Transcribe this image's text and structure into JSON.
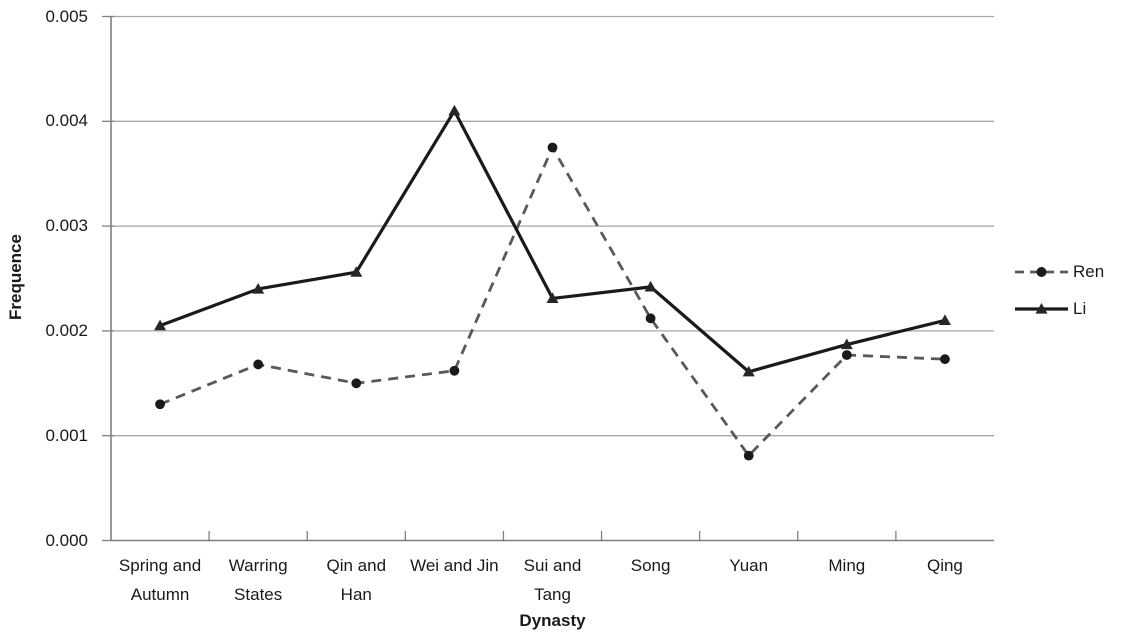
{
  "chart_data": {
    "type": "line",
    "title": "",
    "xlabel": "Dynasty",
    "ylabel": "Frequence",
    "ylim": [
      0,
      0.005
    ],
    "ytick_labels": [
      "0.000",
      "0.001",
      "0.002",
      "0.003",
      "0.004",
      "0.005"
    ],
    "grid": "horizontal",
    "legend_position": "right",
    "categories": [
      "Spring and Autumn",
      "Warring States",
      "Qin and Han",
      "Wei and Jin",
      "Sui and Tang",
      "Song",
      "Yuan",
      "Ming",
      "Qing"
    ],
    "category_display_lines": [
      [
        "Spring and",
        "Autumn"
      ],
      [
        "Warring",
        "States"
      ],
      [
        "Qin and",
        "Han"
      ],
      [
        "Wei and Jin"
      ],
      [
        "Sui and",
        "Tang"
      ],
      [
        "Song"
      ],
      [
        "Yuan"
      ],
      [
        "Ming"
      ],
      [
        "Qing"
      ]
    ],
    "series": [
      {
        "name": "Ren",
        "line_style": "dashed",
        "marker": "circle",
        "color": "#595959",
        "marker_color": "#1a1a1a",
        "values": [
          0.0013,
          0.00168,
          0.0015,
          0.00162,
          0.00375,
          0.00212,
          0.00081,
          0.00177,
          0.00173
        ]
      },
      {
        "name": "Li",
        "line_style": "solid",
        "marker": "triangle",
        "color": "#1a1a1a",
        "marker_color": "#262626",
        "values": [
          0.00205,
          0.0024,
          0.00256,
          0.0041,
          0.00231,
          0.00242,
          0.00161,
          0.00187,
          0.0021
        ]
      }
    ],
    "colors": {
      "gridline": "#a6a6a6",
      "axis": "#808080",
      "text": "#1a1a1a",
      "background": "#ffffff"
    }
  }
}
